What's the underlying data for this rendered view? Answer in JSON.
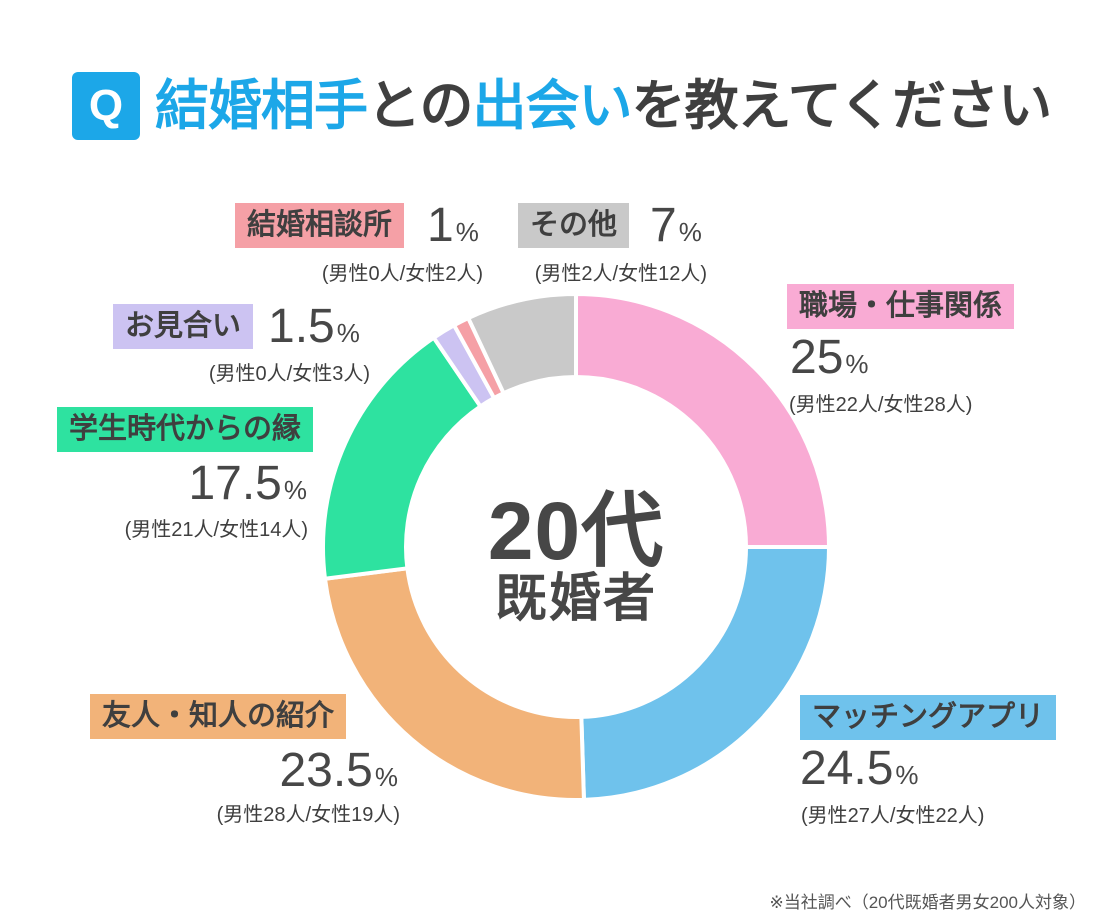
{
  "title": {
    "q": "Q",
    "parts": [
      {
        "text": "結婚相手",
        "color": "blue"
      },
      {
        "text": "との",
        "color": "dark"
      },
      {
        "text": "出会い",
        "color": "blue"
      },
      {
        "text": "を教えてください",
        "color": "dark"
      }
    ]
  },
  "center": {
    "line1": "20代",
    "line2": "既婚者"
  },
  "footnote": "※当社調べ（20代既婚者男女200人対象）",
  "colors": {
    "accent_blue": "#1ca7e8",
    "title_dark": "#3f3f3f",
    "text_gray": "#555555",
    "gap_white": "#ffffff"
  },
  "chart_data": {
    "type": "pie",
    "subtype": "donut",
    "title": "結婚相手との出会い（20代既婚者）",
    "center_label": "20代既婚者",
    "unit": "%",
    "start_angle_deg": 0,
    "direction": "clockwise",
    "inner_radius_ratio": 0.67,
    "total_people": 200,
    "segments": [
      {
        "label": "職場・仕事関係",
        "value_pct": 25,
        "value_display": "25",
        "men": 22,
        "women": 28,
        "sub": "(男性22人/女性28人)",
        "color": "#f9abd4"
      },
      {
        "label": "マッチングアプリ",
        "value_pct": 24.5,
        "value_display": "24.5",
        "men": 27,
        "women": 22,
        "sub": "(男性27人/女性22人)",
        "color": "#6fc2ec"
      },
      {
        "label": "友人・知人の紹介",
        "value_pct": 23.5,
        "value_display": "23.5",
        "men": 28,
        "women": 19,
        "sub": "(男性28人/女性19人)",
        "color": "#f2b379"
      },
      {
        "label": "学生時代からの縁",
        "value_pct": 17.5,
        "value_display": "17.5",
        "men": 21,
        "women": 14,
        "sub": "(男性21人/女性14人)",
        "color": "#2ee2a0"
      },
      {
        "label": "お見合い",
        "value_pct": 1.5,
        "value_display": "1.5",
        "men": 0,
        "women": 3,
        "sub": "(男性0人/女性3人)",
        "color": "#ccc3f2"
      },
      {
        "label": "結婚相談所",
        "value_pct": 1,
        "value_display": "1",
        "men": 0,
        "women": 2,
        "sub": "(男性0人/女性2人)",
        "color": "#f5a0a6"
      },
      {
        "label": "その他",
        "value_pct": 7,
        "value_display": "7",
        "men": 2,
        "women": 12,
        "sub": "(男性2人/女性12人)",
        "color": "#c9c9c9"
      }
    ]
  }
}
